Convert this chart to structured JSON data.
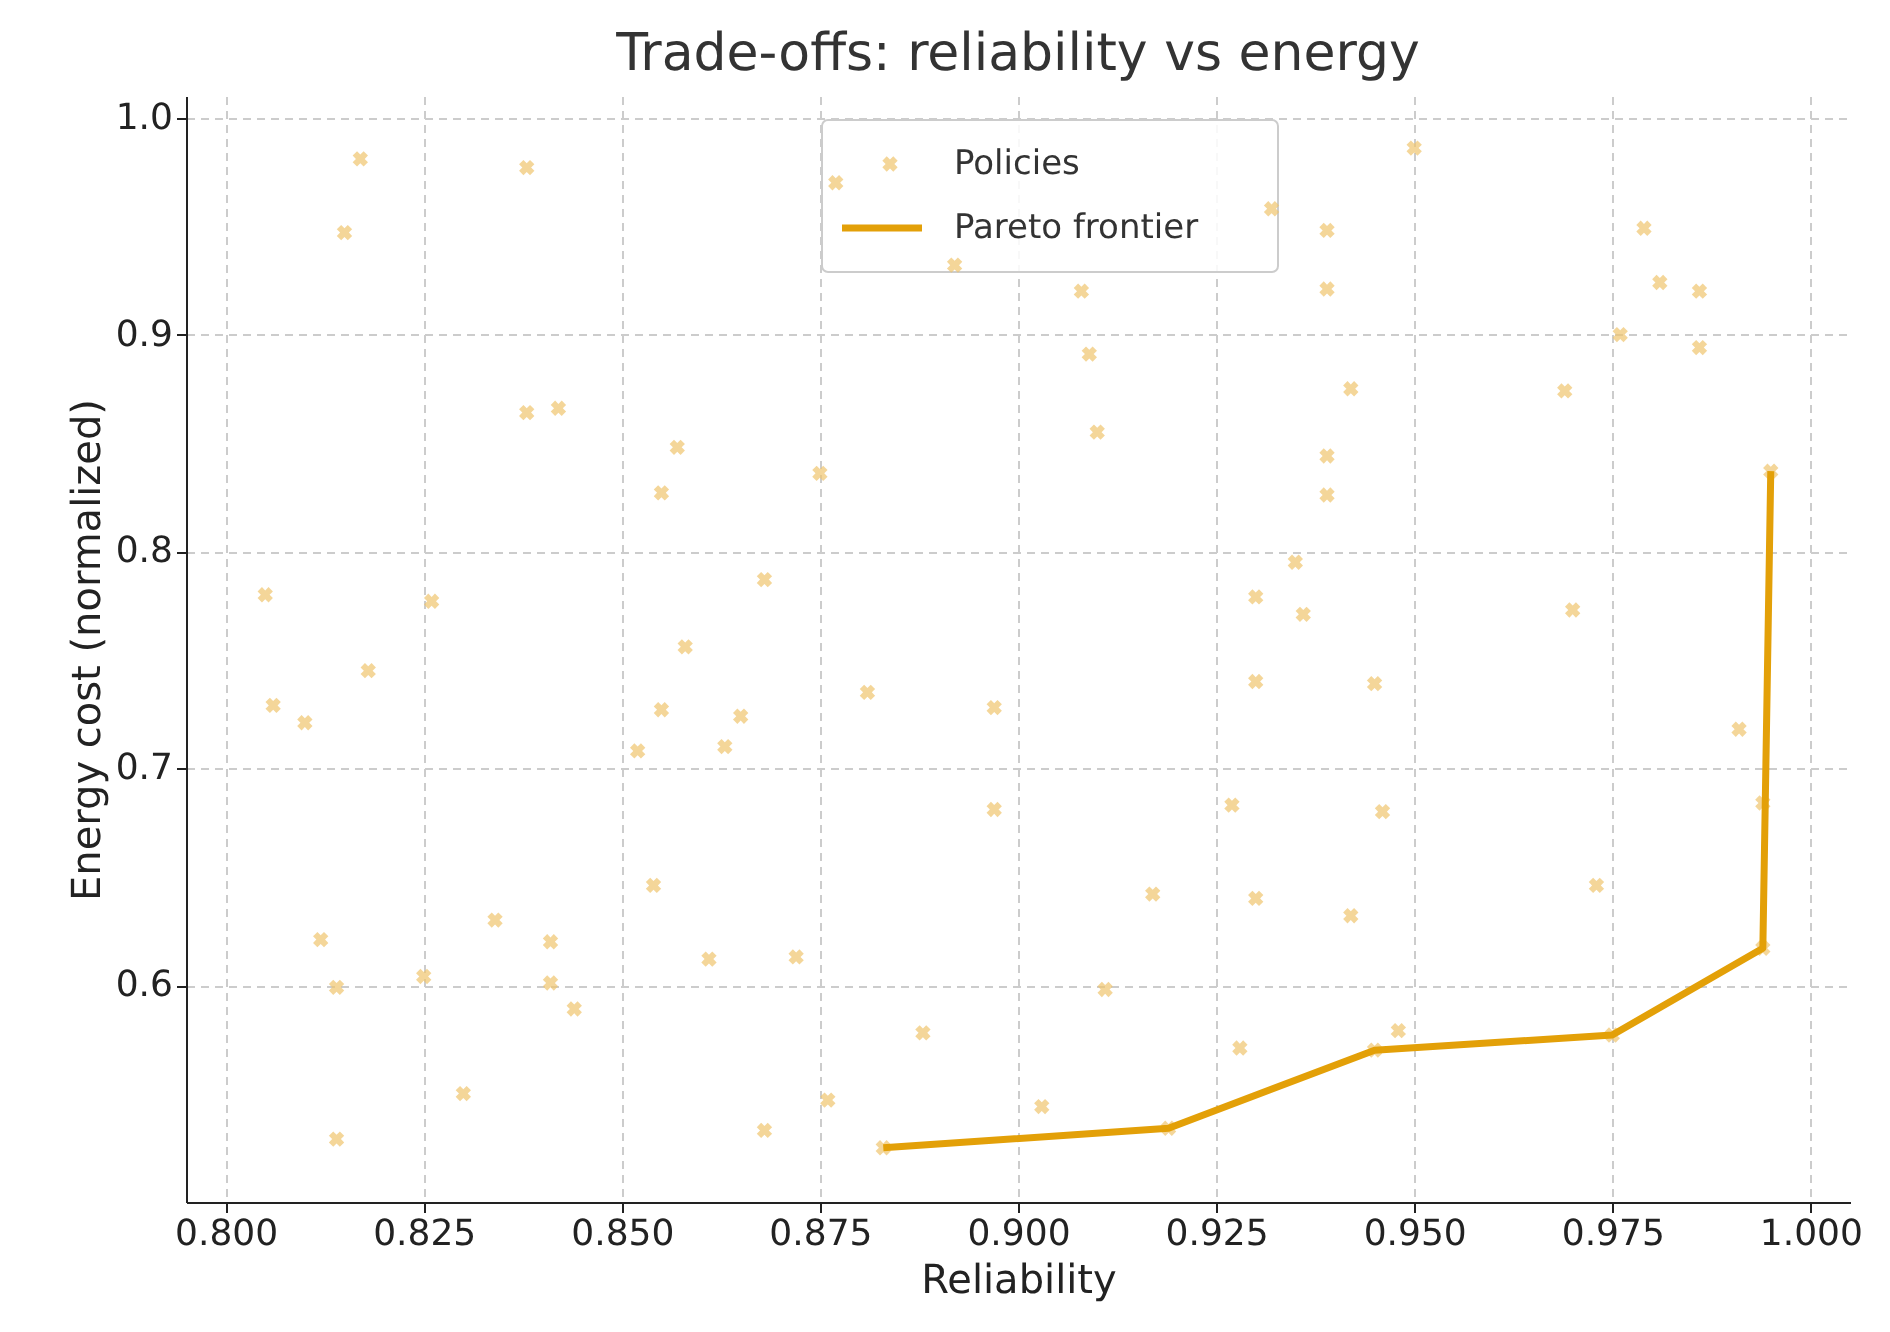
{
  "chart_data": {
    "type": "scatter",
    "title": "Trade-offs: reliability vs energy",
    "xlabel": "Reliability",
    "ylabel": "Energy cost (normalized)",
    "xlim": [
      0.795,
      1.005
    ],
    "ylim": [
      0.5,
      1.01
    ],
    "xticks": [
      {
        "value": 0.8,
        "label": "0.800"
      },
      {
        "value": 0.825,
        "label": "0.825"
      },
      {
        "value": 0.85,
        "label": "0.850"
      },
      {
        "value": 0.875,
        "label": "0.875"
      },
      {
        "value": 0.9,
        "label": "0.900"
      },
      {
        "value": 0.925,
        "label": "0.925"
      },
      {
        "value": 0.95,
        "label": "0.950"
      },
      {
        "value": 0.975,
        "label": "0.975"
      },
      {
        "value": 1.0,
        "label": "1.000"
      }
    ],
    "yticks": [
      {
        "value": 0.6,
        "label": "0.6"
      },
      {
        "value": 0.7,
        "label": "0.7"
      },
      {
        "value": 0.8,
        "label": "0.8"
      },
      {
        "value": 0.9,
        "label": "0.9"
      },
      {
        "value": 1.0,
        "label": "1.0"
      }
    ],
    "grid": true,
    "legend": "top",
    "marker": "cross",
    "series": [
      {
        "name": "Policies",
        "type": "scatter",
        "color": "#efc46e",
        "x": [
          0.805,
          0.806,
          0.81,
          0.815,
          0.817,
          0.818,
          0.812,
          0.814,
          0.814,
          0.826,
          0.825,
          0.83,
          0.834,
          0.838,
          0.838,
          0.842,
          0.841,
          0.841,
          0.844,
          0.852,
          0.857,
          0.855,
          0.858,
          0.855,
          0.854,
          0.861,
          0.863,
          0.865,
          0.868,
          0.868,
          0.872,
          0.875,
          0.876,
          0.877,
          0.881,
          0.883,
          0.888,
          0.892,
          0.897,
          0.897,
          0.903,
          0.908,
          0.909,
          0.91,
          0.911,
          0.917,
          0.919,
          0.928,
          0.927,
          0.93,
          0.93,
          0.93,
          0.932,
          0.935,
          0.936,
          0.939,
          0.939,
          0.939,
          0.939,
          0.942,
          0.942,
          0.945,
          0.945,
          0.946,
          0.948,
          0.95,
          0.969,
          0.97,
          0.973,
          0.975,
          0.976,
          0.979,
          0.981,
          0.986,
          0.986,
          0.991,
          0.994,
          0.994,
          0.995
        ],
        "values": [
          0.78,
          0.729,
          0.721,
          0.947,
          0.981,
          0.745,
          0.621,
          0.599,
          0.529,
          0.777,
          0.604,
          0.55,
          0.63,
          0.977,
          0.864,
          0.866,
          0.62,
          0.601,
          0.589,
          0.708,
          0.848,
          0.827,
          0.756,
          0.727,
          0.646,
          0.612,
          0.71,
          0.724,
          0.787,
          0.533,
          0.613,
          0.836,
          0.547,
          0.97,
          0.735,
          0.525,
          0.578,
          0.932,
          0.728,
          0.681,
          0.544,
          0.92,
          0.891,
          0.855,
          0.598,
          0.642,
          0.534,
          0.571,
          0.683,
          0.64,
          0.74,
          0.779,
          0.958,
          0.795,
          0.771,
          0.948,
          0.921,
          0.844,
          0.826,
          0.875,
          0.632,
          0.739,
          0.57,
          0.68,
          0.579,
          0.986,
          0.874,
          0.773,
          0.646,
          0.577,
          0.9,
          0.949,
          0.924,
          0.92,
          0.894,
          0.718,
          0.684,
          0.617,
          0.837
        ]
      },
      {
        "name": "Pareto frontier",
        "type": "line",
        "color": "#e3a008",
        "line_style": "solid",
        "marker": "none",
        "x": [
          0.883,
          0.919,
          0.945,
          0.975,
          0.994,
          0.995
        ],
        "values": [
          0.525,
          0.534,
          0.57,
          0.577,
          0.617,
          0.837
        ]
      }
    ]
  }
}
